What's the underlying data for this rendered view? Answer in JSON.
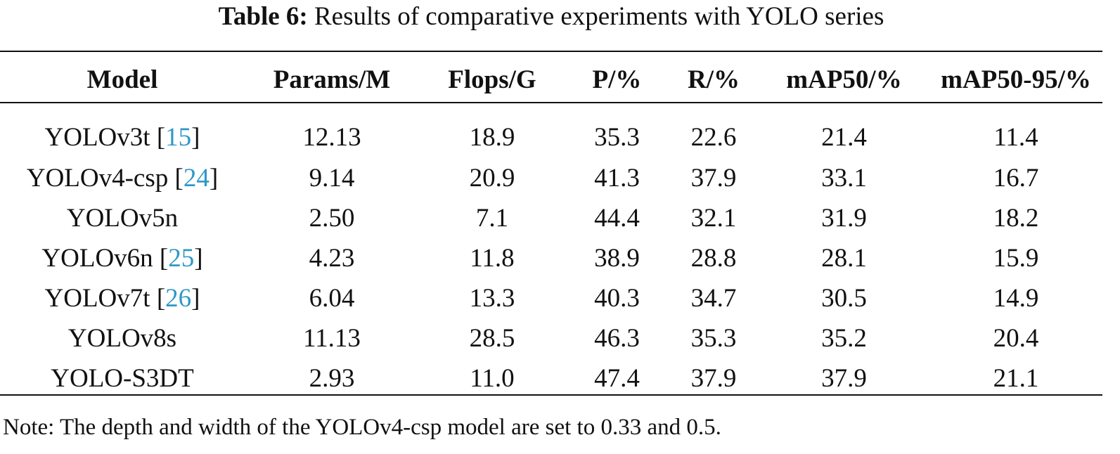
{
  "caption": {
    "label": "Table 6:",
    "text": "Results of comparative experiments with YOLO series"
  },
  "table": {
    "columns": [
      "Model",
      "Params/M",
      "Flops/G",
      "P/%",
      "R/%",
      "mAP50/%",
      "mAP50-95/%"
    ],
    "rows": [
      {
        "model": "YOLOv3t",
        "ref": "15",
        "values": [
          "12.13",
          "18.9",
          "35.3",
          "22.6",
          "21.4",
          "11.4"
        ]
      },
      {
        "model": "YOLOv4-csp",
        "ref": "24",
        "values": [
          "9.14",
          "20.9",
          "41.3",
          "37.9",
          "33.1",
          "16.7"
        ]
      },
      {
        "model": "YOLOv5n",
        "ref": "",
        "values": [
          "2.50",
          "7.1",
          "44.4",
          "32.1",
          "31.9",
          "18.2"
        ]
      },
      {
        "model": "YOLOv6n",
        "ref": "25",
        "values": [
          "4.23",
          "11.8",
          "38.9",
          "28.8",
          "28.1",
          "15.9"
        ]
      },
      {
        "model": "YOLOv7t",
        "ref": "26",
        "values": [
          "6.04",
          "13.3",
          "40.3",
          "34.7",
          "30.5",
          "14.9"
        ]
      },
      {
        "model": "YOLOv8s",
        "ref": "",
        "values": [
          "11.13",
          "28.5",
          "46.3",
          "35.3",
          "35.2",
          "20.4"
        ]
      },
      {
        "model": "YOLO-S3DT",
        "ref": "",
        "values": [
          "2.93",
          "11.0",
          "47.4",
          "37.9",
          "37.9",
          "21.1"
        ]
      }
    ]
  },
  "note": "Note: The depth and width of the YOLOv4-csp model are set to 0.33 and 0.5.",
  "colors": {
    "citation": "#2e98c8",
    "text": "#111111"
  }
}
